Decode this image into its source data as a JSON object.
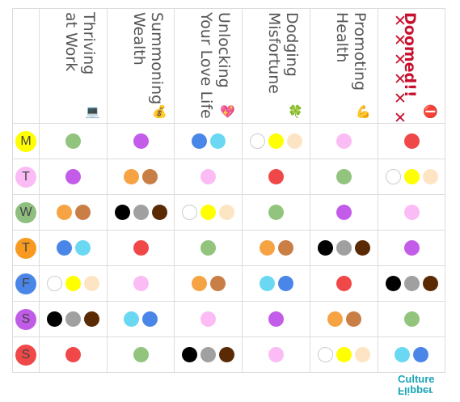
{
  "columns": [
    {
      "label": "Thriving\nat Work",
      "icon": "laptop-icon",
      "glyph": "💻"
    },
    {
      "label": "Summoning\nWealth",
      "icon": "money-bag-icon",
      "glyph": "💰"
    },
    {
      "label": "Unlocking\nYour Love Life",
      "icon": "heart-icon",
      "glyph": "💖"
    },
    {
      "label": "Dodging\nMisfortune",
      "icon": "clover-icon",
      "glyph": "🍀"
    },
    {
      "label": "Promoting\nHealth",
      "icon": "muscle-icon",
      "glyph": "💪"
    },
    {
      "label": "Doomed!!",
      "marks": "✕✕✕✕✕✕",
      "icon": "no-entry-icon",
      "glyph": "⛔"
    }
  ],
  "days": [
    {
      "letter": "M",
      "color": "#ffff00"
    },
    {
      "letter": "T",
      "color": "#fbbcf5"
    },
    {
      "letter": "W",
      "color": "#8fbf7f"
    },
    {
      "letter": "T",
      "color": "#f89a1f"
    },
    {
      "letter": "F",
      "color": "#4a86e8"
    },
    {
      "letter": "S",
      "color": "#c05ce8"
    },
    {
      "letter": "S",
      "color": "#f04848"
    }
  ],
  "palette": {
    "green": "#92c47e",
    "purple": "#c35ce8",
    "blue": "#4a86e8",
    "cyan": "#6ad8f2",
    "white": "#ffffff",
    "yellow": "#ffff00",
    "cream": "#fde5c4",
    "pink": "#fbbcf5",
    "red": "#f04848",
    "orange": "#f6a344",
    "brown": "#c97e46",
    "black": "#000000",
    "gray": "#a0a0a0",
    "darkbrown": "#5a2a05"
  },
  "grid": [
    [
      [
        "green"
      ],
      [
        "purple"
      ],
      [
        "blue",
        "cyan"
      ],
      [
        "white",
        "yellow",
        "cream"
      ],
      [
        "pink"
      ],
      [
        "red"
      ]
    ],
    [
      [
        "purple"
      ],
      [
        "orange",
        "brown"
      ],
      [
        "pink"
      ],
      [
        "red"
      ],
      [
        "green"
      ],
      [
        "white",
        "yellow",
        "cream"
      ]
    ],
    [
      [
        "orange",
        "brown"
      ],
      [
        "black",
        "gray",
        "darkbrown"
      ],
      [
        "white",
        "yellow",
        "cream"
      ],
      [
        "green"
      ],
      [
        "purple"
      ],
      [
        "pink"
      ]
    ],
    [
      [
        "blue",
        "cyan"
      ],
      [
        "red"
      ],
      [
        "green"
      ],
      [
        "orange",
        "brown"
      ],
      [
        "black",
        "gray",
        "darkbrown"
      ],
      [
        "purple"
      ]
    ],
    [
      [
        "white",
        "yellow",
        "cream"
      ],
      [
        "pink"
      ],
      [
        "orange",
        "brown"
      ],
      [
        "cyan",
        "blue"
      ],
      [
        "red"
      ],
      [
        "black",
        "gray",
        "darkbrown"
      ]
    ],
    [
      [
        "black",
        "gray",
        "darkbrown"
      ],
      [
        "cyan",
        "blue"
      ],
      [
        "pink"
      ],
      [
        "purple"
      ],
      [
        "orange",
        "brown"
      ],
      [
        "green"
      ]
    ],
    [
      [
        "red"
      ],
      [
        "green"
      ],
      [
        "black",
        "gray",
        "darkbrown"
      ],
      [
        "pink"
      ],
      [
        "white",
        "yellow",
        "cream"
      ],
      [
        "cyan",
        "blue"
      ]
    ]
  ],
  "logo": {
    "line1": "Culture",
    "line2": "Flipper"
  }
}
